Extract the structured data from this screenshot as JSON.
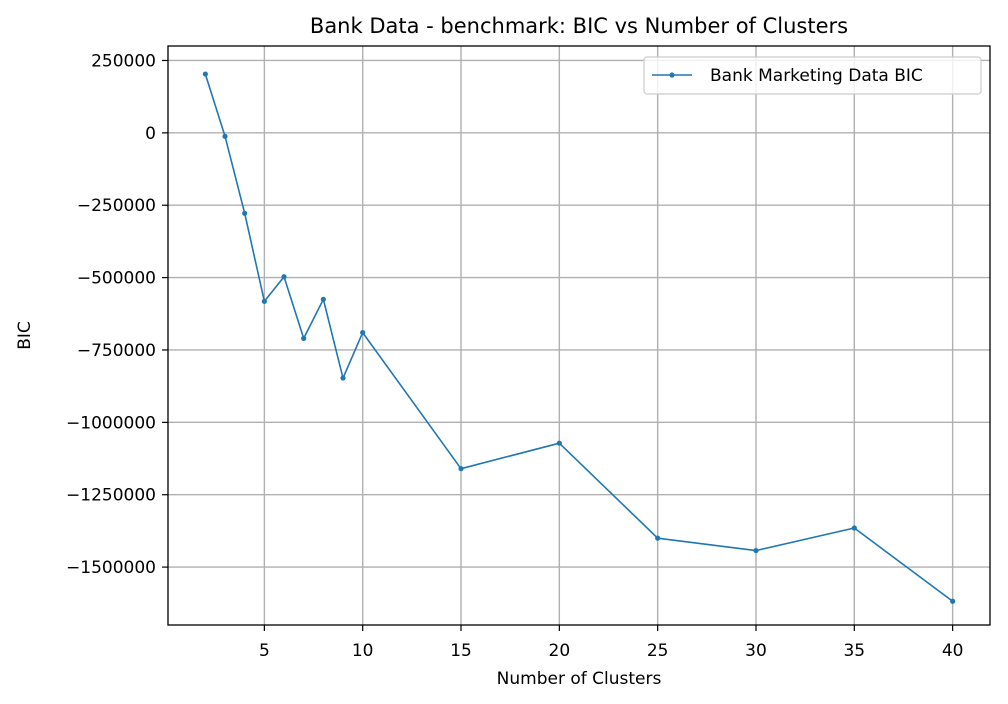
{
  "chart_data": {
    "type": "line",
    "title": "Bank Data - benchmark: BIC vs Number of Clusters",
    "xlabel": "Number of Clusters",
    "ylabel": "BIC",
    "xlim": [
      0.1,
      41.9
    ],
    "ylim": [
      -1700000,
      300000
    ],
    "xticks": [
      5,
      10,
      15,
      20,
      25,
      30,
      35,
      40
    ],
    "xtick_labels": [
      "5",
      "10",
      "15",
      "20",
      "25",
      "30",
      "35",
      "40"
    ],
    "yticks": [
      250000,
      0,
      -250000,
      -500000,
      -750000,
      -1000000,
      -1250000,
      -1500000
    ],
    "ytick_labels": [
      "250000",
      "0",
      "−250000",
      "−500000",
      "−750000",
      "−1000000",
      "−1250000",
      "−1500000"
    ],
    "grid": true,
    "legend_position": "top-right",
    "series": [
      {
        "name": "Bank Marketing Data BIC",
        "color": "#1f77b4",
        "marker": "dot",
        "x": [
          2,
          3,
          4,
          5,
          6,
          7,
          8,
          9,
          10,
          15,
          20,
          25,
          30,
          35,
          40
        ],
        "y": [
          203000,
          -12000,
          -278000,
          -582000,
          -497000,
          -710000,
          -575000,
          -847000,
          -690000,
          -1160000,
          -1072000,
          -1400000,
          -1443000,
          -1365000,
          -1618000
        ]
      }
    ]
  }
}
